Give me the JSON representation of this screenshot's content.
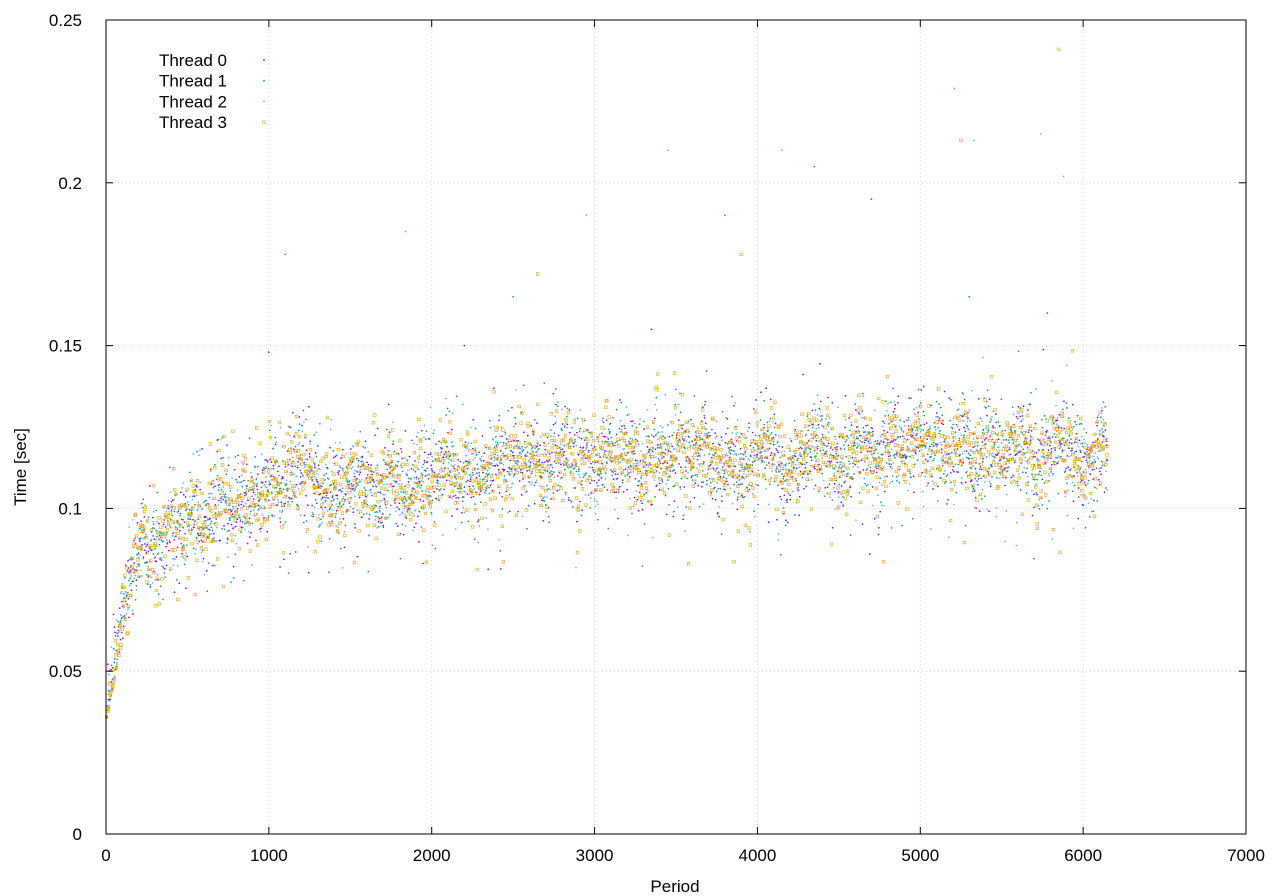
{
  "chart_data": {
    "type": "scatter",
    "title": "",
    "xlabel": "Period",
    "ylabel": "Time [sec]",
    "xlim": [
      0,
      7000
    ],
    "ylim": [
      0,
      0.25
    ],
    "x_ticks": [
      0,
      1000,
      2000,
      3000,
      4000,
      5000,
      6000,
      7000
    ],
    "x_tick_labels": [
      "0",
      "1000",
      "2000",
      "3000",
      "4000",
      "5000",
      "6000",
      "7000"
    ],
    "y_ticks": [
      0,
      0.05,
      0.1,
      0.15,
      0.2,
      0.25
    ],
    "y_tick_labels": [
      "0",
      "0.05",
      "0.1",
      "0.15",
      "0.2",
      "0.25"
    ],
    "grid": true,
    "legend_position": "top-left",
    "series": [
      {
        "name": "Thread 0",
        "color": "#9400d3",
        "marker": "dot",
        "trend": [
          [
            0,
            0.04
          ],
          [
            50,
            0.055
          ],
          [
            100,
            0.07
          ],
          [
            200,
            0.085
          ],
          [
            300,
            0.09
          ],
          [
            500,
            0.095
          ],
          [
            700,
            0.1
          ],
          [
            1000,
            0.105
          ],
          [
            1500,
            0.108
          ],
          [
            2000,
            0.11
          ],
          [
            2500,
            0.113
          ],
          [
            3000,
            0.114
          ],
          [
            3500,
            0.115
          ],
          [
            4000,
            0.115
          ],
          [
            4500,
            0.116
          ],
          [
            5000,
            0.117
          ],
          [
            5500,
            0.118
          ],
          [
            6000,
            0.118
          ],
          [
            6150,
            0.118
          ]
        ],
        "y_min": [
          [
            0,
            0.035
          ],
          [
            100,
            0.06
          ],
          [
            300,
            0.07
          ],
          [
            1000,
            0.08
          ],
          [
            6150,
            0.085
          ]
        ],
        "y_max": [
          [
            0,
            0.05
          ],
          [
            100,
            0.09
          ],
          [
            300,
            0.11
          ],
          [
            1000,
            0.13
          ],
          [
            3000,
            0.14
          ],
          [
            6150,
            0.15
          ]
        ],
        "outliers": [
          [
            1000,
            0.148
          ],
          [
            2200,
            0.15
          ],
          [
            3350,
            0.155
          ],
          [
            4700,
            0.195
          ],
          [
            5780,
            0.16
          ]
        ]
      },
      {
        "name": "Thread 1",
        "color": "#009e73",
        "marker": "dot",
        "trend": [
          [
            0,
            0.04
          ],
          [
            50,
            0.055
          ],
          [
            100,
            0.07
          ],
          [
            200,
            0.085
          ],
          [
            300,
            0.09
          ],
          [
            500,
            0.095
          ],
          [
            700,
            0.1
          ],
          [
            1000,
            0.105
          ],
          [
            1500,
            0.108
          ],
          [
            2000,
            0.11
          ],
          [
            2500,
            0.113
          ],
          [
            3000,
            0.114
          ],
          [
            3500,
            0.115
          ],
          [
            4000,
            0.115
          ],
          [
            4500,
            0.116
          ],
          [
            5000,
            0.117
          ],
          [
            5500,
            0.118
          ],
          [
            6000,
            0.118
          ],
          [
            6150,
            0.118
          ]
        ],
        "y_min": [
          [
            0,
            0.035
          ],
          [
            100,
            0.06
          ],
          [
            300,
            0.07
          ],
          [
            1000,
            0.08
          ],
          [
            6150,
            0.085
          ]
        ],
        "y_max": [
          [
            0,
            0.05
          ],
          [
            100,
            0.09
          ],
          [
            300,
            0.11
          ],
          [
            1000,
            0.13
          ],
          [
            3000,
            0.14
          ],
          [
            6150,
            0.15
          ]
        ],
        "outliers": [
          [
            1100,
            0.178
          ],
          [
            2500,
            0.165
          ],
          [
            3800,
            0.19
          ],
          [
            4350,
            0.205
          ],
          [
            5300,
            0.165
          ]
        ]
      },
      {
        "name": "Thread 2",
        "color": "#56b4e9",
        "marker": "dot",
        "trend": [
          [
            0,
            0.04
          ],
          [
            50,
            0.055
          ],
          [
            100,
            0.07
          ],
          [
            200,
            0.085
          ],
          [
            300,
            0.09
          ],
          [
            500,
            0.095
          ],
          [
            700,
            0.1
          ],
          [
            1000,
            0.105
          ],
          [
            1500,
            0.108
          ],
          [
            2000,
            0.11
          ],
          [
            2500,
            0.113
          ],
          [
            3000,
            0.114
          ],
          [
            3500,
            0.115
          ],
          [
            4000,
            0.115
          ],
          [
            4500,
            0.116
          ],
          [
            5000,
            0.117
          ],
          [
            5500,
            0.118
          ],
          [
            6000,
            0.118
          ],
          [
            6150,
            0.118
          ]
        ],
        "y_min": [
          [
            0,
            0.035
          ],
          [
            100,
            0.06
          ],
          [
            300,
            0.07
          ],
          [
            1000,
            0.08
          ],
          [
            6150,
            0.085
          ]
        ],
        "y_max": [
          [
            0,
            0.05
          ],
          [
            100,
            0.09
          ],
          [
            300,
            0.11
          ],
          [
            1000,
            0.13
          ],
          [
            3000,
            0.14
          ],
          [
            6150,
            0.15
          ]
        ],
        "outliers": [
          [
            1840,
            0.185
          ],
          [
            2950,
            0.19
          ],
          [
            3450,
            0.21
          ],
          [
            4150,
            0.21
          ],
          [
            5210,
            0.229
          ],
          [
            5330,
            0.213
          ],
          [
            5740,
            0.215
          ],
          [
            5880,
            0.202
          ]
        ]
      },
      {
        "name": "Thread 3",
        "color": "#e69f00",
        "marker": "square",
        "trend": [
          [
            0,
            0.04
          ],
          [
            50,
            0.055
          ],
          [
            100,
            0.07
          ],
          [
            200,
            0.085
          ],
          [
            300,
            0.09
          ],
          [
            500,
            0.095
          ],
          [
            700,
            0.1
          ],
          [
            1000,
            0.105
          ],
          [
            1500,
            0.108
          ],
          [
            2000,
            0.11
          ],
          [
            2500,
            0.113
          ],
          [
            3000,
            0.114
          ],
          [
            3500,
            0.115
          ],
          [
            4000,
            0.115
          ],
          [
            4500,
            0.116
          ],
          [
            5000,
            0.117
          ],
          [
            5500,
            0.118
          ],
          [
            6000,
            0.118
          ],
          [
            6150,
            0.118
          ]
        ],
        "y_min": [
          [
            0,
            0.035
          ],
          [
            100,
            0.06
          ],
          [
            300,
            0.07
          ],
          [
            1000,
            0.08
          ],
          [
            6150,
            0.085
          ]
        ],
        "y_max": [
          [
            0,
            0.05
          ],
          [
            100,
            0.09
          ],
          [
            300,
            0.11
          ],
          [
            1000,
            0.13
          ],
          [
            3000,
            0.14
          ],
          [
            6150,
            0.15
          ]
        ],
        "outliers": [
          [
            2650,
            0.172
          ],
          [
            3900,
            0.178
          ],
          [
            5250,
            0.213
          ],
          [
            5850,
            0.241
          ]
        ]
      }
    ],
    "points_per_series": 1540,
    "x_extent": [
      0,
      6150
    ]
  }
}
